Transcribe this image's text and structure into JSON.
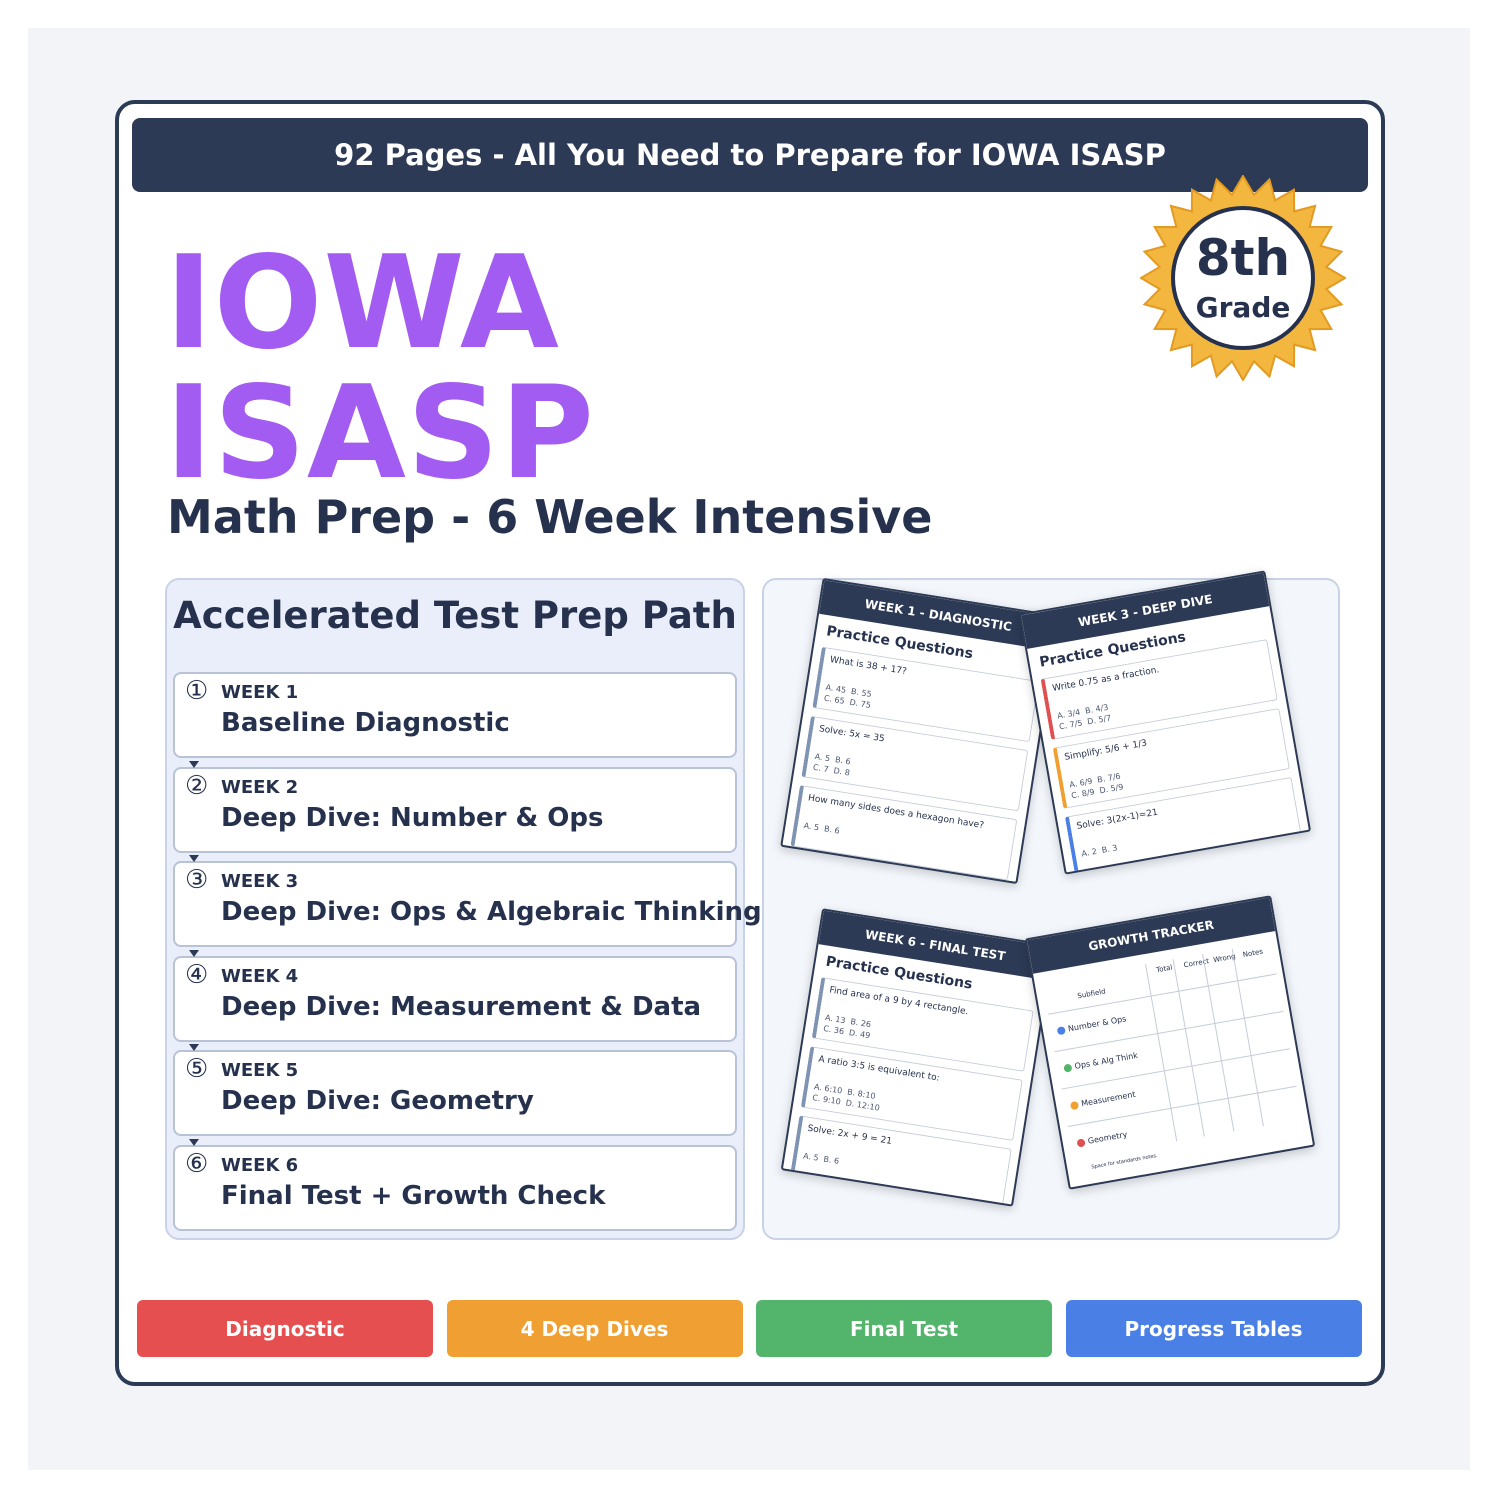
{
  "banner": "92 Pages - All You Need to Prepare for IOWA ISASP",
  "title": [
    "IOWA",
    "ISASP"
  ],
  "subtitle": "Math Prep - 6 Week Intensive",
  "badge": {
    "grade": "8th",
    "label": "Grade"
  },
  "path": {
    "title": "Accelerated Test Prep Path",
    "steps": [
      {
        "number": "①",
        "week": "WEEK 1",
        "label": "Baseline Diagnostic"
      },
      {
        "number": "②",
        "week": "WEEK 2",
        "label": "Deep Dive: Number & Ops"
      },
      {
        "number": "③",
        "week": "WEEK 3",
        "label": "Deep Dive: Ops & Algebraic Thinking"
      },
      {
        "number": "④",
        "week": "WEEK 4",
        "label": "Deep Dive: Measurement & Data"
      },
      {
        "number": "⑤",
        "week": "WEEK 5",
        "label": "Deep Dive: Geometry"
      },
      {
        "number": "⑥",
        "week": "WEEK 6",
        "label": "Final Test + Growth Check"
      }
    ]
  },
  "previews": [
    {
      "header": "WEEK 1 - DIAGNOSTIC",
      "heading": "Practice Questions",
      "questions": [
        {
          "text": "What is 38 + 17?",
          "choices": [
            "A. 45  B. 55",
            "C. 65  D. 75"
          ]
        },
        {
          "text": "Solve: 5x = 35",
          "choices": [
            "A. 5  B. 6",
            "C. 7  D. 8"
          ]
        },
        {
          "text": "How many sides does a hexagon have?",
          "choices": [
            "A. 5  B. 6"
          ]
        }
      ]
    },
    {
      "header": "WEEK 3 - DEEP DIVE",
      "heading": "Practice Questions",
      "questions": [
        {
          "text": "Write 0.75 as a fraction.",
          "choices": [
            "A. 3/4  B. 4/3",
            "C. 7/5  D. 5/7"
          ]
        },
        {
          "text": "Simplify: 5/6 + 1/3",
          "choices": [
            "A. 6/9  B. 7/6",
            "C. 8/9  D. 5/9"
          ]
        },
        {
          "text": "Solve: 3(2x-1)=21",
          "choices": [
            "A. 2  B. 3"
          ]
        }
      ]
    },
    {
      "header": "WEEK 6 - FINAL TEST",
      "heading": "Practice Questions",
      "questions": [
        {
          "text": "Find area of a 9 by 4 rectangle.",
          "choices": [
            "A. 13  B. 26",
            "C. 36  D. 49"
          ]
        },
        {
          "text": "A ratio 3:5 is equivalent to:",
          "choices": [
            "A. 6:10  B. 8:10",
            "C. 9:10  D. 12:10"
          ]
        },
        {
          "text": "Solve: 2x + 9 = 21",
          "choices": [
            "A. 5  B. 6"
          ]
        }
      ]
    }
  ],
  "tracker": {
    "header": "GROWTH TRACKER",
    "columns": [
      "Subfield",
      "Total",
      "Correct",
      "Wrong",
      "Notes"
    ],
    "rows": [
      "Number & Ops",
      "Ops & Alg Think",
      "Measurement",
      "Geometry"
    ],
    "note": "Space for standards notes."
  },
  "tags": [
    "Diagnostic",
    "4 Deep Dives",
    "Final Test",
    "Progress Tables"
  ]
}
